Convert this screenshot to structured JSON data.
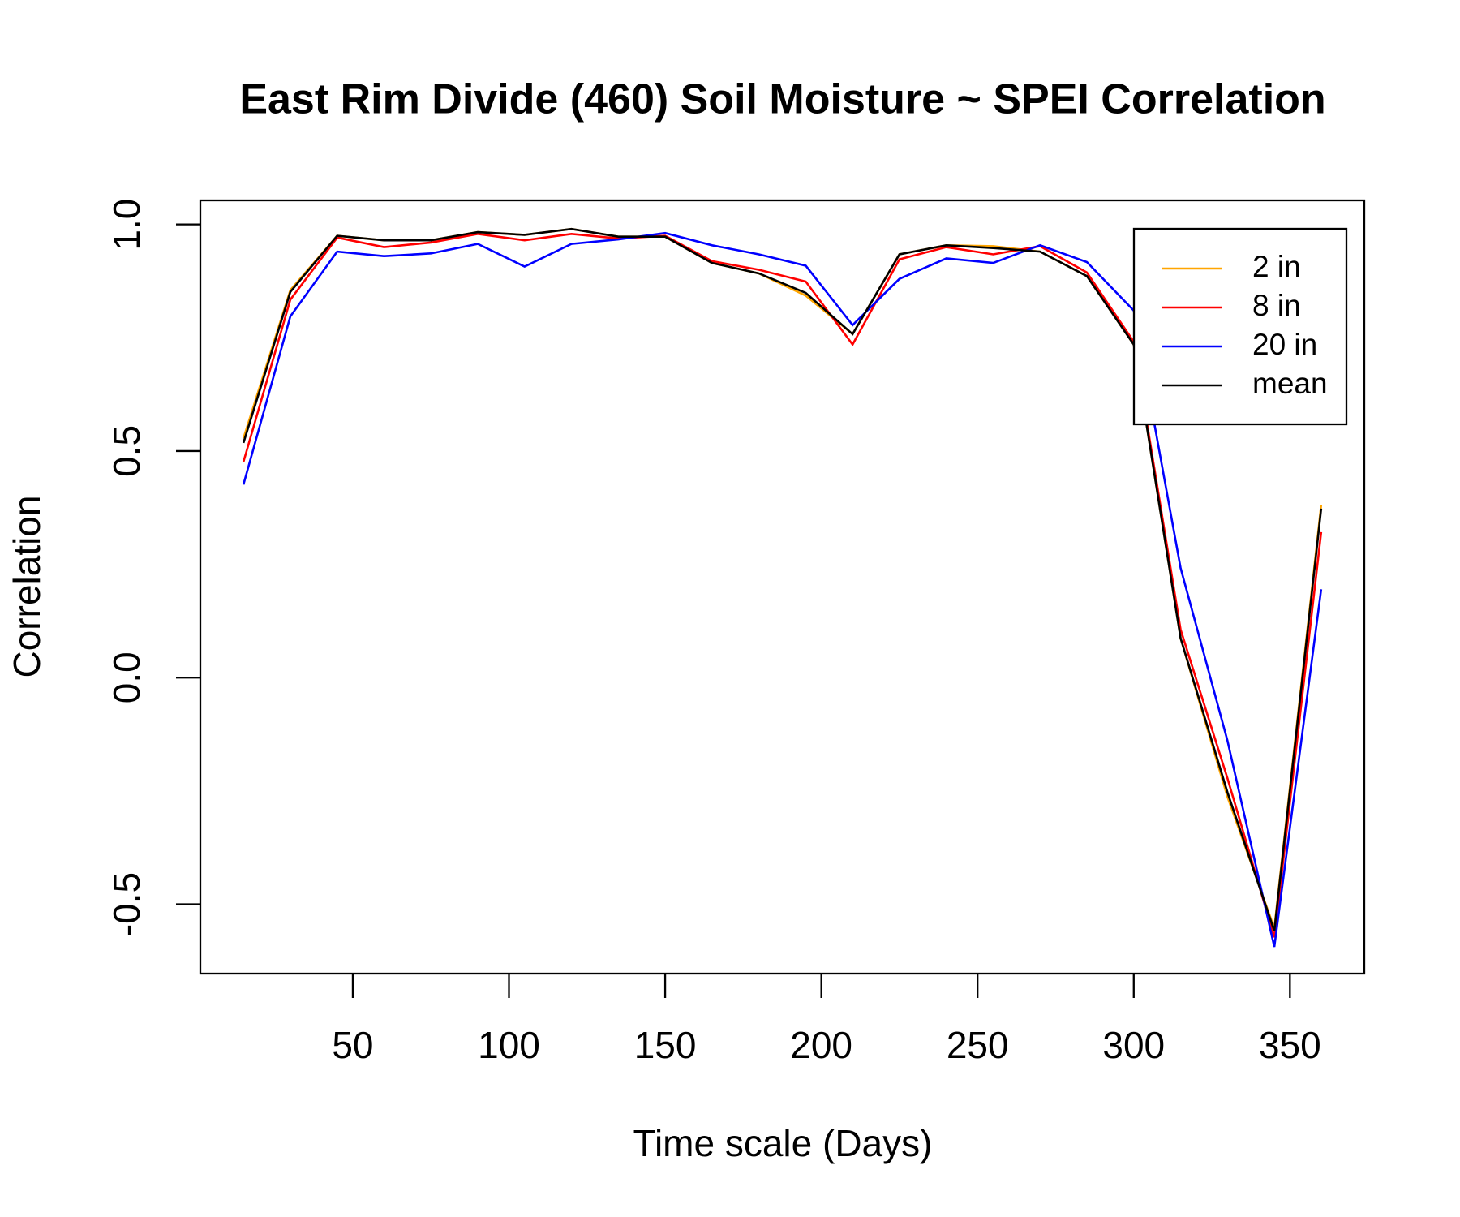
{
  "chart_data": {
    "type": "line",
    "title": "East Rim Divide (460) Soil Moisture ~ SPEI Correlation",
    "x_label": "Time scale (Days)",
    "y_label": "Correlation",
    "x": [
      15,
      30,
      45,
      60,
      75,
      90,
      105,
      120,
      135,
      150,
      165,
      180,
      195,
      210,
      225,
      240,
      255,
      270,
      285,
      300,
      315,
      330,
      345,
      360
    ],
    "series": [
      {
        "name": "2 in",
        "color": "#ffa500",
        "values": [
          0.528,
          0.855,
          0.975,
          0.965,
          0.965,
          0.983,
          0.977,
          0.99,
          0.973,
          0.973,
          0.915,
          0.892,
          0.843,
          0.758,
          0.934,
          0.954,
          0.952,
          0.94,
          0.886,
          0.735,
          0.087,
          -0.263,
          -0.553,
          0.381
        ]
      },
      {
        "name": "8 in",
        "color": "#ff0000",
        "values": [
          0.476,
          0.834,
          0.971,
          0.95,
          0.96,
          0.979,
          0.965,
          0.979,
          0.969,
          0.975,
          0.919,
          0.9,
          0.874,
          0.735,
          0.923,
          0.95,
          0.934,
          0.952,
          0.894,
          0.741,
          0.106,
          -0.222,
          -0.573,
          0.321
        ]
      },
      {
        "name": "20 in",
        "color": "#0000ff",
        "values": [
          0.426,
          0.797,
          0.94,
          0.93,
          0.936,
          0.957,
          0.907,
          0.957,
          0.967,
          0.981,
          0.954,
          0.934,
          0.909,
          0.778,
          0.88,
          0.925,
          0.915,
          0.954,
          0.917,
          0.81,
          0.242,
          -0.139,
          -0.594,
          0.195
        ]
      },
      {
        "name": "mean",
        "color": "#000000",
        "values": [
          0.518,
          0.851,
          0.975,
          0.965,
          0.965,
          0.983,
          0.977,
          0.99,
          0.973,
          0.973,
          0.915,
          0.892,
          0.849,
          0.758,
          0.934,
          0.954,
          0.948,
          0.94,
          0.886,
          0.735,
          0.087,
          -0.253,
          -0.559,
          0.373
        ]
      }
    ],
    "xlim": [
      1.2,
      373.8
    ],
    "ylim": [
      -0.653,
      1.053
    ],
    "xticks": [
      50,
      100,
      150,
      200,
      250,
      300,
      350
    ],
    "yticks": [
      -0.5,
      {
        "value": 0,
        "label": "0.0"
      },
      0.5,
      {
        "value": 1,
        "label": "1.0"
      }
    ],
    "legend": "topright"
  }
}
